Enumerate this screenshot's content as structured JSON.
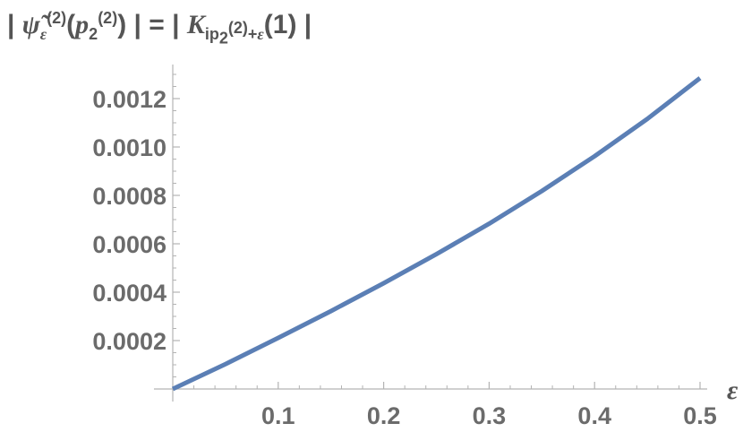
{
  "chart_data": {
    "type": "line",
    "title": "| ψ̃ε(2)(p2(2)) | = | Kip2(2)+ε(1) |",
    "xlabel": "ε",
    "ylabel": "",
    "xlim": [
      0,
      0.5
    ],
    "ylim": [
      0,
      0.0013
    ],
    "x_ticks": [
      0.1,
      0.2,
      0.3,
      0.4,
      0.5
    ],
    "x_tick_labels": [
      "0.1",
      "0.2",
      "0.3",
      "0.4",
      "0.5"
    ],
    "y_ticks": [
      0.0002,
      0.0004,
      0.0006,
      0.0008,
      0.001,
      0.0012
    ],
    "y_tick_labels": [
      "0.0002",
      "0.0004",
      "0.0006",
      "0.0008",
      "0.0010",
      "0.0012"
    ],
    "grid": false,
    "series": [
      {
        "color": "#5b7fb5",
        "x": [
          0,
          0.05,
          0.1,
          0.15,
          0.2,
          0.25,
          0.3,
          0.35,
          0.4,
          0.45,
          0.5
        ],
        "y": [
          0,
          0.000103,
          0.000211,
          0.000322,
          0.000437,
          0.000557,
          0.000683,
          0.000818,
          0.000962,
          0.001116,
          0.001285
        ]
      }
    ]
  }
}
